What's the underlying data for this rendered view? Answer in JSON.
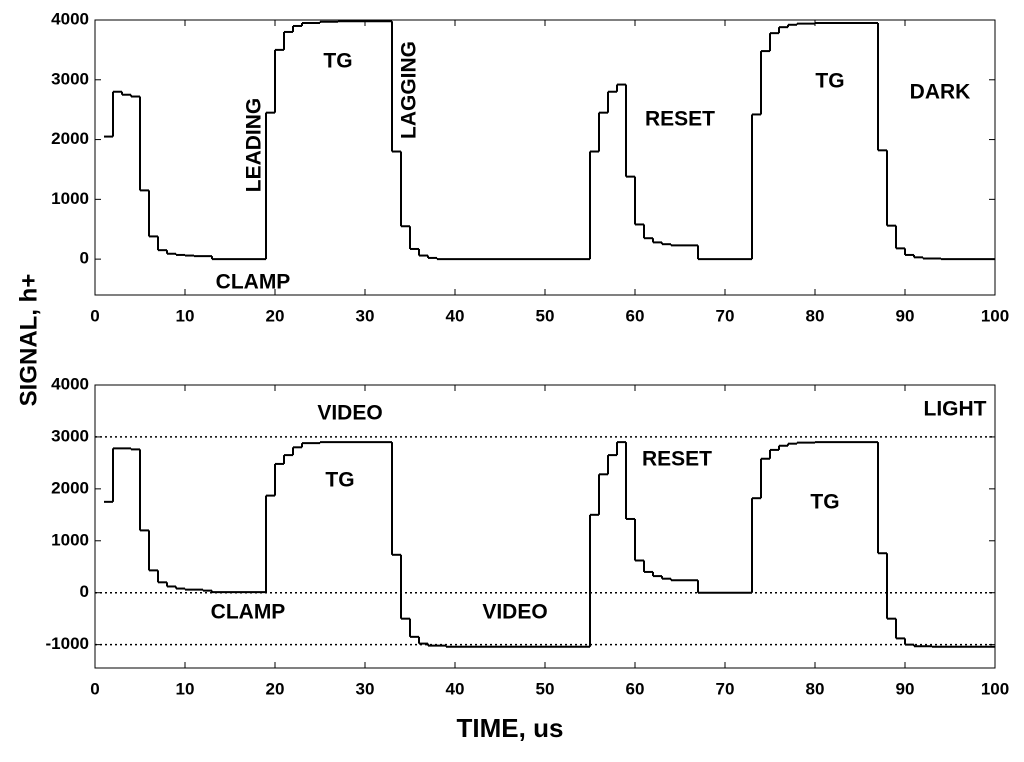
{
  "chart_data": [
    {
      "type": "line",
      "drawstyle": "steps-post",
      "color": "#000000",
      "ylabel": "SIGNAL, h+",
      "xlim": [
        0,
        100
      ],
      "ylim": [
        -600,
        4000
      ],
      "xticks": [
        0,
        10,
        20,
        30,
        40,
        50,
        60,
        70,
        80,
        90,
        100
      ],
      "yticks": [
        0,
        1000,
        2000,
        3000,
        4000
      ],
      "annotations": [
        "LEADING",
        "TG",
        "LAGGING",
        "DARK",
        "RESET",
        "TG",
        "CLAMP"
      ],
      "x": [
        1,
        2,
        3,
        4,
        5,
        6,
        7,
        8,
        9,
        10,
        11,
        13,
        19,
        20,
        21,
        22,
        23,
        25,
        27,
        33,
        34,
        35,
        36,
        37,
        38,
        55,
        56,
        57,
        58,
        59,
        60,
        61,
        62,
        63,
        64,
        67,
        73,
        74,
        75,
        76,
        77,
        78,
        80,
        87,
        88,
        89,
        90,
        91,
        92,
        94,
        100
      ],
      "values": [
        2050,
        2800,
        2750,
        2720,
        1150,
        380,
        150,
        90,
        70,
        60,
        50,
        0,
        2450,
        3500,
        3800,
        3900,
        3950,
        3970,
        3980,
        1800,
        550,
        170,
        60,
        20,
        0,
        1800,
        2450,
        2800,
        2920,
        1380,
        580,
        350,
        280,
        250,
        230,
        0,
        2420,
        3480,
        3780,
        3880,
        3920,
        3940,
        3950,
        1820,
        560,
        180,
        70,
        30,
        10,
        0,
        0
      ]
    },
    {
      "type": "line",
      "drawstyle": "steps-post",
      "color": "#000000",
      "xlabel": "TIME, us",
      "xlim": [
        0,
        100
      ],
      "ylim": [
        -1450,
        4000
      ],
      "xticks": [
        0,
        10,
        20,
        30,
        40,
        50,
        60,
        70,
        80,
        90,
        100
      ],
      "yticks": [
        -1000,
        0,
        1000,
        2000,
        3000,
        4000
      ],
      "hlines": [
        3000,
        0,
        -1000
      ],
      "annotations": [
        "VIDEO",
        "LIGHT",
        "TG",
        "RESET",
        "TG",
        "CLAMP",
        "VIDEO"
      ],
      "x": [
        1,
        2,
        4,
        5,
        6,
        7,
        8,
        9,
        10,
        12,
        13,
        19,
        20,
        21,
        22,
        23,
        25,
        33,
        34,
        35,
        36,
        37,
        39,
        55,
        56,
        57,
        58,
        59,
        60,
        61,
        62,
        63,
        64,
        67,
        73,
        74,
        75,
        76,
        77,
        78,
        80,
        87,
        88,
        89,
        90,
        91,
        93,
        100
      ],
      "values": [
        1750,
        2780,
        2760,
        1200,
        430,
        200,
        120,
        80,
        60,
        40,
        10,
        1870,
        2480,
        2650,
        2800,
        2880,
        2900,
        730,
        -500,
        -850,
        -980,
        -1020,
        -1040,
        1500,
        2280,
        2650,
        2900,
        1420,
        620,
        400,
        320,
        270,
        240,
        0,
        1820,
        2580,
        2750,
        2830,
        2870,
        2890,
        2900,
        760,
        -500,
        -880,
        -1000,
        -1030,
        -1040,
        -1040
      ]
    }
  ]
}
